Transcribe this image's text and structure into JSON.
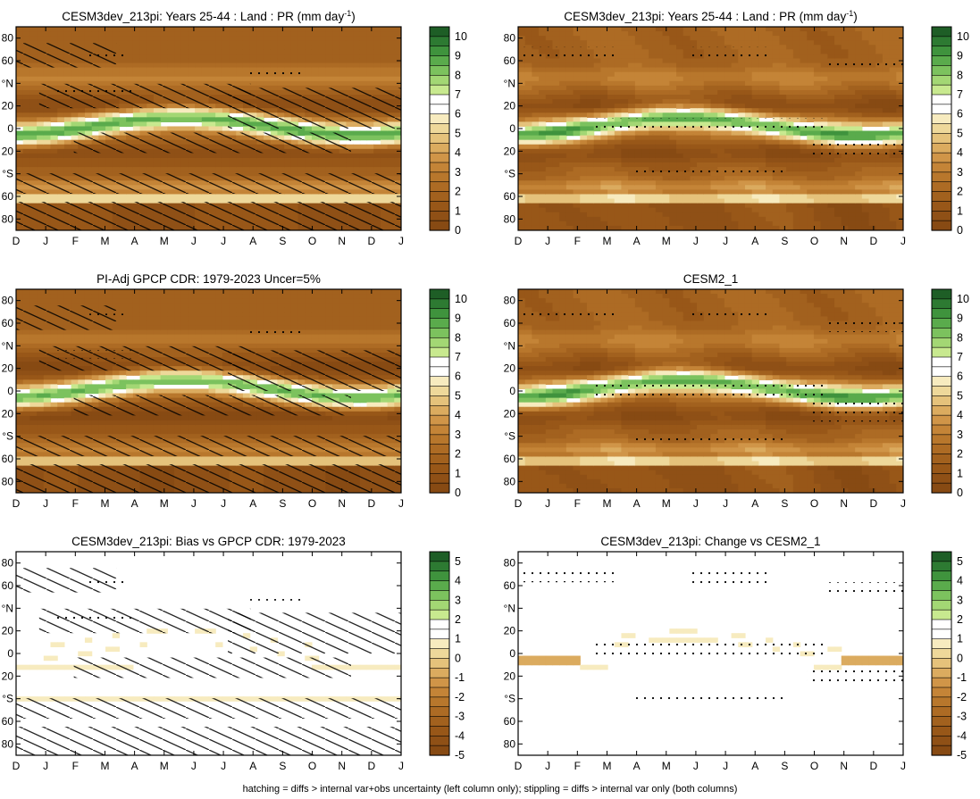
{
  "figure": {
    "footnote": "hatching = diffs > internal var+obs uncertainty (left column only); stippling = diffs > internal var only (both columns)"
  },
  "months": [
    "D",
    "J",
    "F",
    "M",
    "A",
    "M",
    "J",
    "J",
    "A",
    "S",
    "O",
    "N",
    "D",
    "J"
  ],
  "lat_ticks": [
    "80",
    "60",
    "°N",
    "20",
    "0",
    "20",
    "°S",
    "60",
    "80"
  ],
  "colorbars": {
    "abs": {
      "labels": [
        "10",
        "9",
        "8",
        "7",
        "6",
        "5",
        "4",
        "3",
        "2",
        "1",
        "0"
      ],
      "colors": [
        "#1e5e26",
        "#2d7a32",
        "#3f933d",
        "#5aab4c",
        "#7cc25e",
        "#a3d774",
        "#c8e98f",
        "#ffffff",
        "#ffffff",
        "#f7ebbf",
        "#eed89a",
        "#e5c27b",
        "#dbab5f",
        "#d09548",
        "#c48437",
        "#b8772c",
        "#ad6b24",
        "#a2611e",
        "#985718",
        "#8f5016",
        "#874a13"
      ]
    },
    "diff": {
      "labels": [
        "5",
        "4",
        "3",
        "2",
        "1",
        "0",
        "-1",
        "-2",
        "-3",
        "-4",
        "-5"
      ],
      "colors": [
        "#1e5e26",
        "#2d7a32",
        "#3f933d",
        "#5aab4c",
        "#7cc25e",
        "#a3d774",
        "#c8e98f",
        "#ffffff",
        "#ffffff",
        "#f7ebbf",
        "#eed89a",
        "#e5c27b",
        "#dbab5f",
        "#d09548",
        "#c48437",
        "#b8772c",
        "#ad6b24",
        "#a2611e",
        "#985718",
        "#8f5016",
        "#874a13"
      ]
    }
  },
  "chart_data": [
    {
      "type": "heatmap",
      "title": "CESM3dev_213pi: Years 25-44 : Land : PR (mm day",
      "title_sup": "-1",
      "title_end": ")",
      "kind": "abs",
      "hatch": true,
      "stipple": true,
      "colorbar": "abs"
    },
    {
      "type": "heatmap",
      "title": "CESM3dev_213pi: Years 25-44 : Land : PR (mm day",
      "title_sup": "-1",
      "title_end": ")",
      "kind": "abs",
      "hatch": false,
      "stipple": true,
      "colorbar": "abs"
    },
    {
      "type": "heatmap",
      "title": "PI-Adj GPCP CDR: 1979-2023 Uncer=5%",
      "title_sup": "",
      "title_end": "",
      "kind": "abs",
      "hatch": true,
      "stipple": true,
      "colorbar": "abs"
    },
    {
      "type": "heatmap",
      "title": "CESM2_1",
      "title_sup": "",
      "title_end": "",
      "kind": "abs",
      "hatch": false,
      "stipple": true,
      "colorbar": "abs"
    },
    {
      "type": "heatmap",
      "title": "CESM3dev_213pi: Bias vs GPCP CDR: 1979-2023",
      "title_sup": "",
      "title_end": "",
      "kind": "diff",
      "hatch": true,
      "stipple": true,
      "colorbar": "diff"
    },
    {
      "type": "heatmap",
      "title": "CESM3dev_213pi: Change vs CESM2_1",
      "title_sup": "",
      "title_end": "",
      "kind": "diff",
      "hatch": false,
      "stipple": true,
      "colorbar": "diff"
    }
  ]
}
